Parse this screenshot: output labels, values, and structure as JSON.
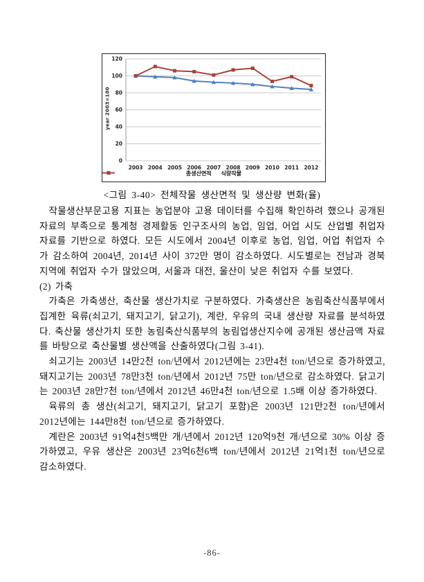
{
  "figure": {
    "caption": "<그림 3-40> 전체작물 생산면적 및 생산량 변화(율)"
  },
  "chart_data": {
    "type": "line",
    "title": "",
    "xlabel": "",
    "ylabel": "year 2003=100",
    "ylim": [
      0,
      120
    ],
    "ytick_step": 20,
    "grid": true,
    "legend_position": "bottom",
    "categories": [
      "2003",
      "2004",
      "2005",
      "2006",
      "2007",
      "2008",
      "2009",
      "2010",
      "2011",
      "2012"
    ],
    "series": [
      {
        "name": "총생산면적",
        "color": "#4F81BD",
        "marker": "triangle",
        "values": [
          100,
          99,
          98,
          94,
          92.5,
          91.5,
          90,
          87.5,
          85.5,
          84
        ]
      },
      {
        "name": "식량작물",
        "color": "#A8423C",
        "marker": "square",
        "values": [
          100,
          111,
          106,
          105,
          101,
          107,
          109,
          93.5,
          99,
          88.5
        ]
      }
    ],
    "gridline_color": "#c9c9c9",
    "axis_color": "#9a9a9a"
  },
  "body": {
    "p1": "작물생산부문고용 지표는 농업분야 고용 데이터를 수집해 확인하려 했으나 공개된 자료의 부족으로 통계청 경제활동 인구조사의 농업, 임업, 어업 시도 산업별 취업자 자료를 기반으로 하였다. 모든 시도에서 2004년 이후로 농업, 임업, 어업 취업자 수가 감소하여 2004년, 2014년 사이 372만 명이 감소하였다. 시도별로는 전남과 경북 지역에 취업자 수가 많았으며, 서울과 대전, 울산이 낮은 취업자 수를 보였다.",
    "section2_heading": "(2) 가축",
    "p2": "가축은 가축생산, 축산물 생산가치로 구분하였다. 가축생산은 농림축산식품부에서 집계한 육류(쇠고기, 돼지고기, 닭고기), 계란, 우유의 국내 생산량 자료를 분석하였다. 축산물 생산가치 또한 농림축산식품부의 농림업생산지수에 공개된 생산금액 자료를 바탕으로 축산물별 생산액을 산출하였다(그림 3-41).",
    "p3": "쇠고기는 2003년 14만2천 ton/년에서 2012년에는 23만4천 ton/년으로 증가하였고, 돼지고기는 2003년 78만3천 ton/년에서 2012년 75만 ton/년으로 감소하였다. 닭고기는 2003년 28만7천 ton/년에서 2012년 46만4천 ton/년으로 1.5배 이상 증가하였다.",
    "p4": "육류의 총 생산(쇠고기, 돼지고기, 닭고기 포함)은 2003년 121만2천 ton/년에서 2012년에는 144만8천 ton/년으로 증가하였다.",
    "p5": "계란은 2003년 91억4천5백만 개/년에서 2012년 120억9천 개/년으로 30% 이상 증가하였고, 우유 생산은 2003년 23억6천6백 ton/년에서 2012년 21억1천 ton/년으로 감소하였다."
  },
  "footer": {
    "page_number": "-86-"
  }
}
